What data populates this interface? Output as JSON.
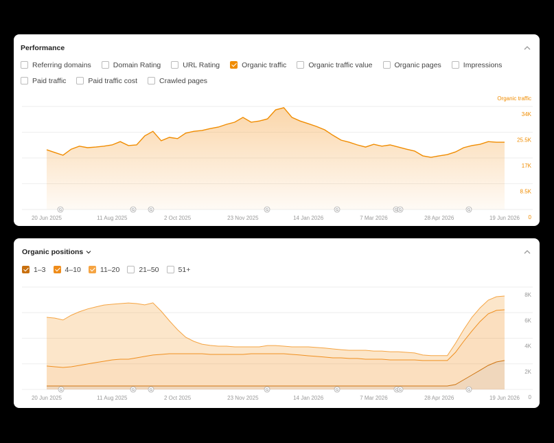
{
  "panels": [
    {
      "title": "Performance",
      "options": [
        {
          "label": "Referring domains",
          "checked": false
        },
        {
          "label": "Domain Rating",
          "checked": false
        },
        {
          "label": "URL Rating",
          "checked": false
        },
        {
          "label": "Organic traffic",
          "checked": true
        },
        {
          "label": "Organic traffic value",
          "checked": false
        },
        {
          "label": "Organic pages",
          "checked": false
        },
        {
          "label": "Impressions",
          "checked": false
        },
        {
          "label": "Paid traffic",
          "checked": false
        },
        {
          "label": "Paid traffic cost",
          "checked": false
        },
        {
          "label": "Crawled pages",
          "checked": false
        }
      ]
    },
    {
      "title": "Organic positions",
      "options": [
        {
          "label": "21–50",
          "checked": false
        },
        {
          "label": "51+",
          "checked": false
        }
      ]
    }
  ],
  "chart_data": [
    {
      "type": "area",
      "y_label": "Organic traffic",
      "color": "#f08c00",
      "categories": [
        "20 Jun 2025",
        null,
        null,
        null,
        null,
        null,
        null,
        null,
        "11 Aug 2025",
        null,
        null,
        null,
        null,
        null,
        null,
        null,
        "2 Oct 2025",
        null,
        null,
        null,
        null,
        null,
        null,
        null,
        "23 Nov 2025",
        null,
        null,
        null,
        null,
        null,
        null,
        null,
        "14 Jan 2026",
        null,
        null,
        null,
        null,
        null,
        null,
        null,
        "7 Mar 2026",
        null,
        null,
        null,
        null,
        null,
        null,
        null,
        "28 Apr 2026",
        null,
        null,
        null,
        null,
        null,
        null,
        null,
        "19 Jun 2026"
      ],
      "values": [
        19700,
        18800,
        17900,
        19900,
        20900,
        20400,
        20600,
        20900,
        21300,
        22400,
        21100,
        21300,
        24300,
        25800,
        22700,
        23800,
        23400,
        25200,
        25800,
        26100,
        26700,
        27200,
        28100,
        28800,
        30400,
        28800,
        29200,
        29900,
        32900,
        33600,
        30400,
        29200,
        28300,
        27400,
        26300,
        24500,
        22900,
        22200,
        21300,
        20600,
        21500,
        20900,
        21300,
        20600,
        19900,
        19300,
        17700,
        17200,
        17700,
        18100,
        19000,
        20400,
        21100,
        21500,
        22400,
        22200,
        22200
      ],
      "ylim": [
        0,
        34000
      ],
      "yticks": [
        0,
        {
          "value": 8500,
          "label": "8.5K"
        },
        {
          "value": 17000,
          "label": "17K"
        },
        {
          "value": 25500,
          "label": "25.5K"
        },
        {
          "value": 34000,
          "label": "34K"
        }
      ],
      "grid": true,
      "annotations": [
        "G",
        "G",
        "G",
        "G",
        "G",
        "G",
        "G",
        "G"
      ]
    },
    {
      "type": "stacked_area",
      "categories": [
        "20 Jun 2025",
        null,
        null,
        null,
        null,
        null,
        null,
        null,
        "11 Aug 2025",
        null,
        null,
        null,
        null,
        null,
        null,
        null,
        "2 Oct 2025",
        null,
        null,
        null,
        null,
        null,
        null,
        null,
        "23 Nov 2025",
        null,
        null,
        null,
        null,
        null,
        null,
        null,
        "14 Jan 2026",
        null,
        null,
        null,
        null,
        null,
        null,
        null,
        "7 Mar 2026",
        null,
        null,
        null,
        null,
        null,
        null,
        null,
        "28 Apr 2026",
        null,
        null,
        null,
        null,
        null,
        null,
        null,
        "19 Jun 2026"
      ],
      "series": [
        {
          "name": "1–3",
          "color": "#c8700f",
          "values": [
            270,
            270,
            270,
            270,
            270,
            270,
            270,
            270,
            270,
            270,
            270,
            270,
            270,
            270,
            270,
            270,
            270,
            270,
            270,
            270,
            270,
            270,
            270,
            270,
            270,
            270,
            270,
            270,
            270,
            270,
            270,
            270,
            270,
            270,
            270,
            270,
            270,
            270,
            270,
            270,
            270,
            270,
            270,
            270,
            270,
            270,
            270,
            270,
            270,
            270,
            380,
            750,
            1130,
            1500,
            1880,
            2150,
            2260
          ]
        },
        {
          "name": "4–10",
          "color": "#ef8c1a",
          "values": [
            1560,
            1500,
            1450,
            1500,
            1610,
            1720,
            1830,
            1930,
            2040,
            2090,
            2090,
            2200,
            2310,
            2420,
            2470,
            2520,
            2520,
            2520,
            2520,
            2520,
            2470,
            2470,
            2470,
            2470,
            2470,
            2520,
            2520,
            2520,
            2520,
            2520,
            2470,
            2420,
            2360,
            2310,
            2260,
            2200,
            2200,
            2150,
            2150,
            2090,
            2090,
            2090,
            2040,
            2040,
            2040,
            2040,
            1990,
            1990,
            1990,
            1990,
            2520,
            3010,
            3440,
            3810,
            4030,
            4030,
            3970
          ]
        },
        {
          "name": "11–20",
          "color": "#f5a442",
          "values": [
            3810,
            3810,
            3710,
            4030,
            4190,
            4300,
            4350,
            4400,
            4350,
            4350,
            4400,
            4240,
            4030,
            4080,
            3380,
            2580,
            1880,
            1290,
            970,
            750,
            700,
            640,
            640,
            590,
            590,
            540,
            540,
            640,
            640,
            590,
            590,
            640,
            700,
            700,
            700,
            700,
            640,
            640,
            640,
            700,
            640,
            640,
            640,
            640,
            590,
            540,
            430,
            380,
            380,
            380,
            700,
            910,
            1070,
            1070,
            1070,
            1070,
            1070
          ]
        }
      ],
      "ylim": [
        0,
        8000
      ],
      "yticks": [
        0,
        {
          "value": 2000,
          "label": "2K"
        },
        {
          "value": 4000,
          "label": "4K"
        },
        {
          "value": 6000,
          "label": "6K"
        },
        {
          "value": 8000,
          "label": "8K"
        }
      ],
      "grid": true,
      "annotations": [
        "G",
        "G",
        "G",
        "G",
        "G",
        "G",
        "G",
        "G"
      ]
    }
  ]
}
